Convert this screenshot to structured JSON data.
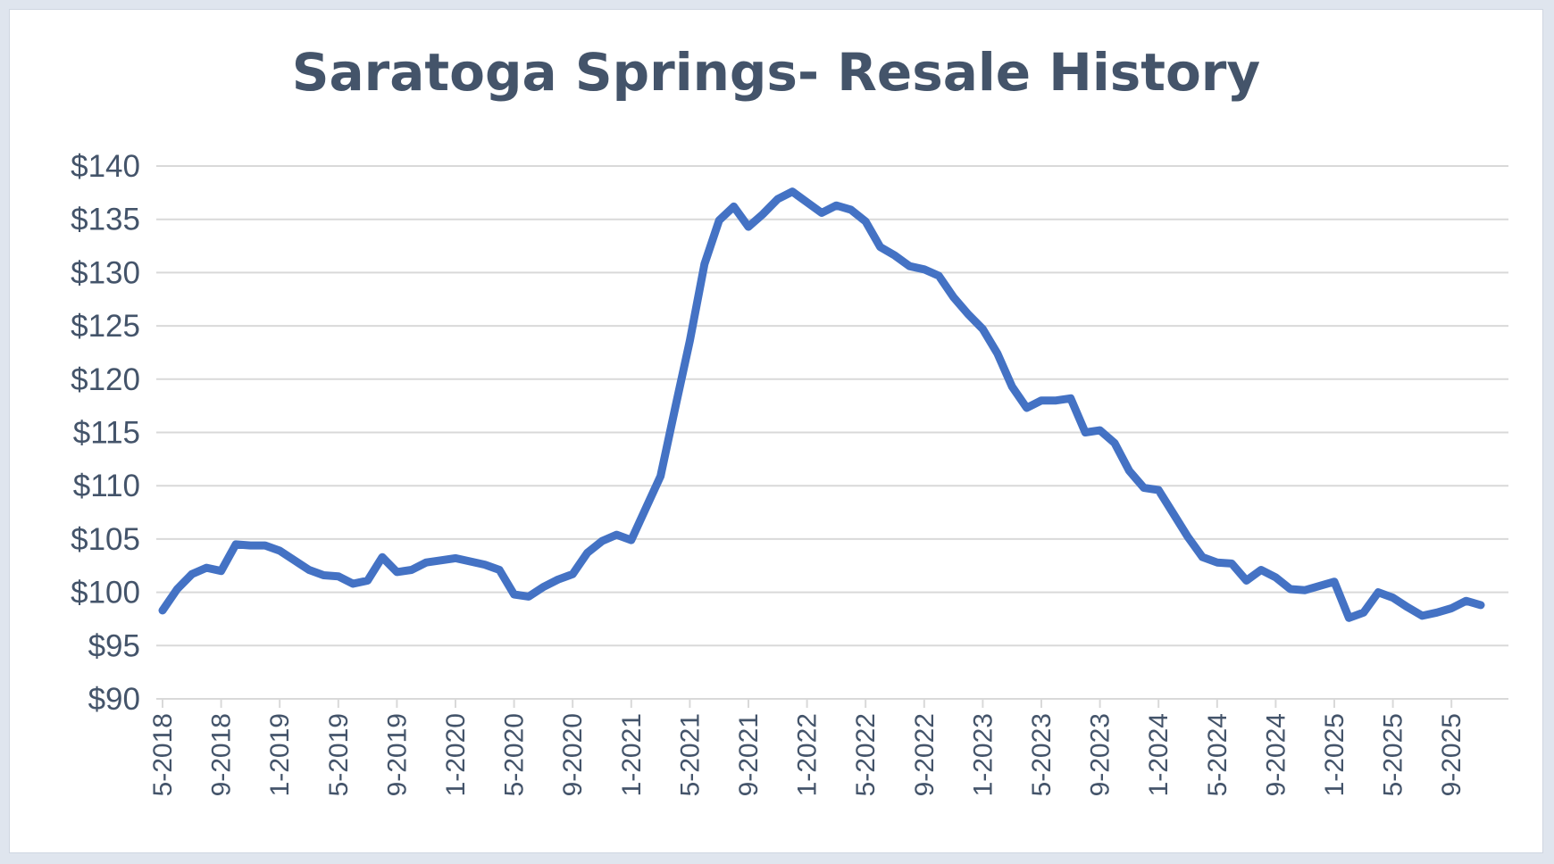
{
  "chart_data": {
    "type": "line",
    "title": "Saratoga Springs- Resale History",
    "xlabel": "",
    "ylabel": "",
    "ylim": [
      90,
      140
    ],
    "y_ticks": [
      90,
      95,
      100,
      105,
      110,
      115,
      120,
      125,
      130,
      135,
      140
    ],
    "y_tick_labels": [
      "$90",
      "$95",
      "$100",
      "$105",
      "$110",
      "$115",
      "$120",
      "$125",
      "$130",
      "$135",
      "$140"
    ],
    "x_tick_labels": [
      "5-2018",
      "9-2018",
      "1-2019",
      "5-2019",
      "9-2019",
      "1-2020",
      "5-2020",
      "9-2020",
      "1-2021",
      "5-2021",
      "9-2021",
      "1-2022",
      "5-2022",
      "9-2022",
      "1-2023",
      "5-2023",
      "9-2023",
      "1-2024",
      "5-2024",
      "9-2024",
      "1-2025",
      "5-2025",
      "9-2025"
    ],
    "x_start": "5-2018",
    "x_end": "12-2025",
    "grid": true,
    "legend": "none",
    "line_color": "#4472c4",
    "series": [
      {
        "name": "Resale",
        "values": [
          98.3,
          100.3,
          101.7,
          102.3,
          102.0,
          104.5,
          104.4,
          104.4,
          103.9,
          103.0,
          102.1,
          101.6,
          101.5,
          100.8,
          101.1,
          103.3,
          101.9,
          102.1,
          102.8,
          103.0,
          103.2,
          102.9,
          102.6,
          102.1,
          99.8,
          99.6,
          100.5,
          101.2,
          101.7,
          103.7,
          104.8,
          105.4,
          104.9,
          107.9,
          110.9,
          117.3,
          123.6,
          130.8,
          134.9,
          136.2,
          134.3,
          135.5,
          136.9,
          137.6,
          136.6,
          135.6,
          136.3,
          135.9,
          134.8,
          132.4,
          131.6,
          130.6,
          130.3,
          129.7,
          127.7,
          126.1,
          124.7,
          122.4,
          119.3,
          117.3,
          118.0,
          118.0,
          118.2,
          115.0,
          115.2,
          114.0,
          111.4,
          109.8,
          109.6,
          107.4,
          105.2,
          103.3,
          102.8,
          102.7,
          101.1,
          102.1,
          101.4,
          100.3,
          100.2,
          100.6,
          101.0,
          97.6,
          98.1,
          100.0,
          99.5,
          98.6,
          97.8,
          98.1,
          98.5,
          99.2,
          98.8
        ]
      }
    ]
  }
}
